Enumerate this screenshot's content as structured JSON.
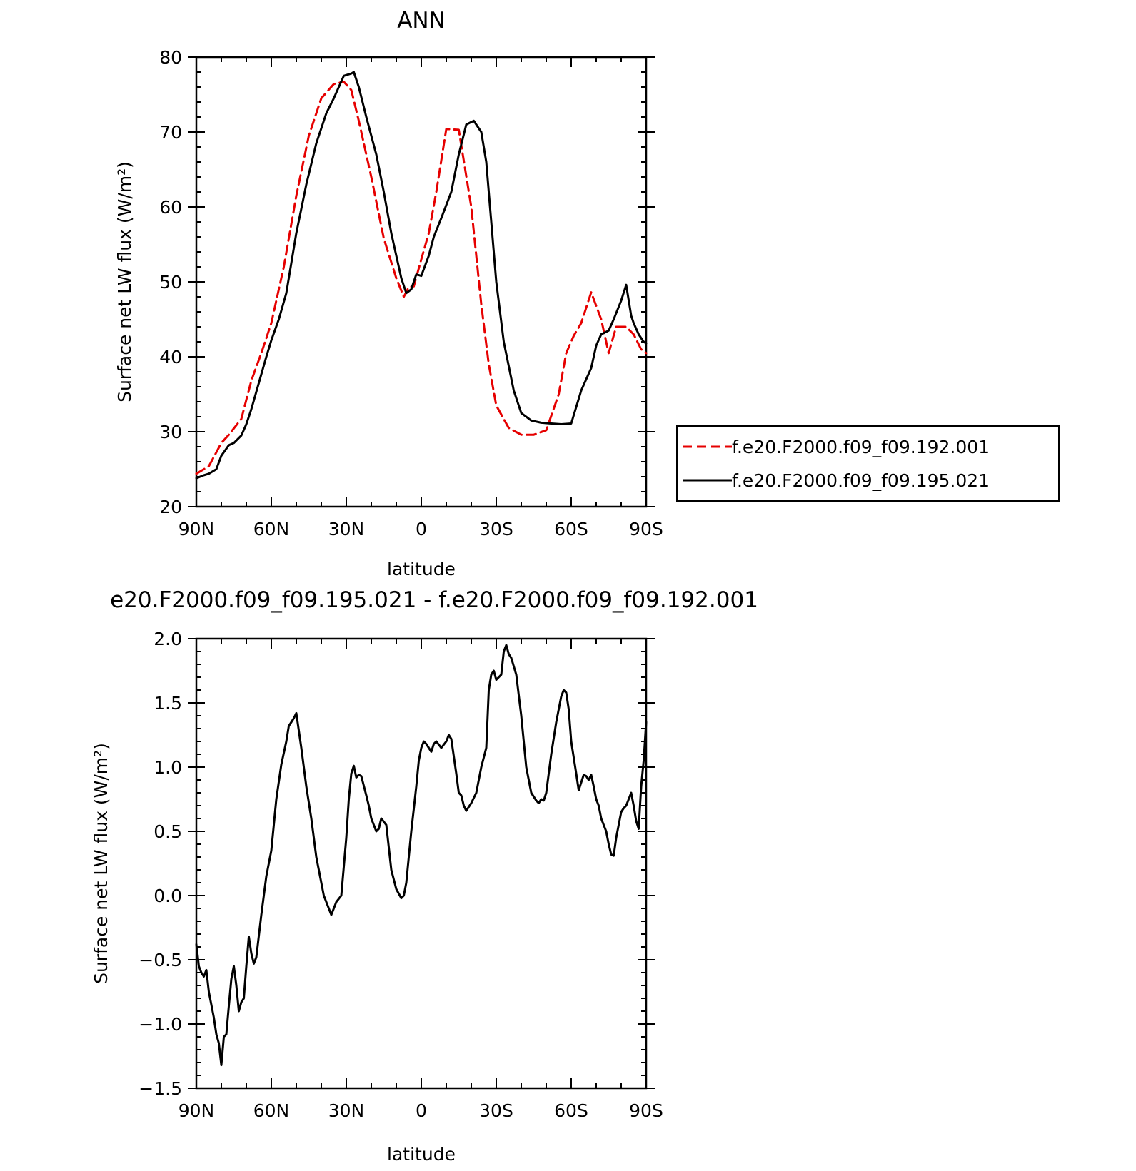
{
  "chart_data": [
    {
      "type": "line",
      "title": "ANN",
      "xlabel": "latitude",
      "ylabel": "Surface net LW flux (W/m²)",
      "xlim": [
        90,
        -90
      ],
      "ylim": [
        20,
        80
      ],
      "x_ticks": [
        {
          "value": 90,
          "label": "90N"
        },
        {
          "value": 60,
          "label": "60N"
        },
        {
          "value": 30,
          "label": "30N"
        },
        {
          "value": 0,
          "label": "0"
        },
        {
          "value": -30,
          "label": "30S"
        },
        {
          "value": -60,
          "label": "60S"
        },
        {
          "value": -90,
          "label": "90S"
        }
      ],
      "y_ticks": [
        20,
        30,
        40,
        50,
        60,
        70,
        80
      ],
      "legend": "right",
      "series": [
        {
          "name": "f.e20.F2000.f09_f09.192.001",
          "color": "#e60000",
          "dash": "dashed",
          "x": [
            90,
            85,
            80,
            77,
            72,
            68,
            64,
            60,
            55,
            50,
            45,
            40,
            35,
            31,
            28,
            25,
            20,
            15,
            10,
            7,
            5,
            3,
            0,
            -3,
            -6,
            -10,
            -15,
            -20,
            -24,
            -27,
            -30,
            -35,
            -40,
            -45,
            -50,
            -55,
            -58,
            -61,
            -64,
            -68,
            -72,
            -75,
            -78,
            -82,
            -85,
            -88,
            -90
          ],
          "values": [
            24.4,
            25.4,
            28.5,
            29.6,
            31.7,
            36.8,
            40.5,
            44.5,
            52.0,
            61.5,
            69.5,
            74.5,
            76.4,
            76.7,
            75.6,
            71.5,
            64.0,
            55.8,
            50.5,
            48.0,
            49.3,
            49.4,
            53.0,
            56.5,
            62.0,
            70.4,
            70.3,
            60.0,
            47.0,
            39.0,
            33.5,
            30.5,
            29.6,
            29.6,
            30.2,
            35.0,
            40.5,
            42.8,
            44.5,
            48.6,
            45.0,
            40.5,
            44.0,
            44.0,
            43.0,
            41.0,
            40.5
          ]
        },
        {
          "name": "f.e20.F2000.f09_f09.195.021",
          "color": "#000000",
          "dash": "solid",
          "x": [
            90,
            87,
            85,
            82,
            80,
            77,
            75,
            72,
            70,
            68,
            65,
            62,
            60,
            57,
            54,
            50,
            46,
            42,
            38,
            35,
            31,
            28,
            27,
            25,
            22,
            18,
            15,
            12,
            8,
            6,
            4,
            2,
            0,
            -3,
            -5,
            -8,
            -12,
            -15,
            -18,
            -21,
            -24,
            -26,
            -28,
            -30,
            -33,
            -37,
            -40,
            -44,
            -48,
            -52,
            -56,
            -60,
            -64,
            -66,
            -68,
            -70,
            -72,
            -75,
            -77,
            -80,
            -82,
            -84,
            -85,
            -87,
            -89,
            -90
          ],
          "values": [
            23.8,
            24.2,
            24.4,
            25.0,
            26.8,
            28.2,
            28.5,
            29.5,
            31.0,
            33.0,
            36.5,
            40.0,
            42.2,
            45.0,
            48.5,
            56.5,
            63.0,
            68.5,
            72.5,
            74.5,
            77.5,
            77.8,
            78.0,
            76.0,
            72.0,
            67.0,
            62.0,
            56.5,
            50.5,
            48.5,
            49.0,
            51.0,
            50.8,
            53.5,
            56.0,
            58.5,
            62.0,
            67.0,
            71.0,
            71.5,
            70.0,
            66.0,
            58.0,
            50.0,
            42.0,
            35.5,
            32.5,
            31.5,
            31.2,
            31.1,
            31.0,
            31.1,
            35.5,
            37.0,
            38.5,
            41.5,
            43.0,
            43.5,
            45.0,
            47.5,
            49.6,
            45.5,
            44.5,
            43.0,
            42.0,
            41.8
          ]
        }
      ]
    },
    {
      "type": "line",
      "title": "e20.F2000.f09_f09.195.021 - f.e20.F2000.f09_f09.192.001",
      "xlabel": "latitude",
      "ylabel": "Surface net LW flux (W/m²)",
      "xlim": [
        90,
        -90
      ],
      "ylim": [
        -1.5,
        2.0
      ],
      "x_ticks": [
        {
          "value": 90,
          "label": "90N"
        },
        {
          "value": 60,
          "label": "60N"
        },
        {
          "value": 30,
          "label": "30N"
        },
        {
          "value": 0,
          "label": "0"
        },
        {
          "value": -30,
          "label": "30S"
        },
        {
          "value": -60,
          "label": "60S"
        },
        {
          "value": -90,
          "label": "90S"
        }
      ],
      "y_ticks": [
        {
          "value": -1.5,
          "label": "−1.5"
        },
        {
          "value": -1.0,
          "label": "−1.0"
        },
        {
          "value": -0.5,
          "label": "−0.5"
        },
        {
          "value": 0.0,
          "label": "0.0"
        },
        {
          "value": 0.5,
          "label": "0.5"
        },
        {
          "value": 1.0,
          "label": "1.0"
        },
        {
          "value": 1.5,
          "label": "1.5"
        },
        {
          "value": 2.0,
          "label": "2.0"
        }
      ],
      "series": [
        {
          "color": "#000000",
          "dash": "solid",
          "x": [
            90,
            89,
            88,
            87,
            86,
            85,
            84,
            83,
            82,
            81,
            80,
            79,
            78,
            77,
            76,
            75,
            74,
            73,
            72,
            71,
            70,
            69,
            68,
            67,
            66,
            64,
            62,
            60,
            58,
            56,
            54,
            53,
            52,
            51,
            50,
            48,
            46,
            44,
            42,
            40,
            39,
            38,
            37,
            36,
            34,
            32,
            30,
            29,
            28,
            27,
            26,
            25,
            24,
            22,
            21,
            20,
            19,
            18,
            17,
            16,
            14,
            12,
            10,
            8,
            7,
            6,
            4,
            2,
            1,
            0,
            -1,
            -2,
            -3,
            -4,
            -5,
            -6,
            -8,
            -10,
            -11,
            -12,
            -14,
            -15,
            -16,
            -17,
            -18,
            -20,
            -22,
            -24,
            -26,
            -27,
            -28,
            -29,
            -30,
            -31,
            -32,
            -33,
            -34,
            -35,
            -36,
            -38,
            -40,
            -42,
            -44,
            -46,
            -47,
            -48,
            -49,
            -50,
            -52,
            -54,
            -56,
            -57,
            -58,
            -59,
            -60,
            -62,
            -63,
            -64,
            -65,
            -66,
            -67,
            -68,
            -69,
            -70,
            -71,
            -72,
            -73,
            -74,
            -75,
            -76,
            -77,
            -78,
            -79,
            -80,
            -81,
            -82,
            -83,
            -84,
            -85,
            -86,
            -87,
            -88,
            -89,
            -90
          ],
          "values": [
            -0.38,
            -0.55,
            -0.6,
            -0.63,
            -0.58,
            -0.75,
            -0.85,
            -0.95,
            -1.08,
            -1.15,
            -1.32,
            -1.1,
            -1.08,
            -0.86,
            -0.65,
            -0.55,
            -0.7,
            -0.9,
            -0.83,
            -0.8,
            -0.55,
            -0.32,
            -0.45,
            -0.53,
            -0.48,
            -0.15,
            0.15,
            0.35,
            0.75,
            1.02,
            1.2,
            1.32,
            1.35,
            1.38,
            1.42,
            1.15,
            0.85,
            0.6,
            0.3,
            0.1,
            0.0,
            -0.05,
            -0.1,
            -0.15,
            -0.05,
            0.0,
            0.45,
            0.75,
            0.95,
            1.01,
            0.92,
            0.94,
            0.93,
            0.78,
            0.7,
            0.6,
            0.55,
            0.5,
            0.52,
            0.6,
            0.55,
            0.2,
            0.05,
            -0.02,
            0.0,
            0.1,
            0.5,
            0.85,
            1.05,
            1.15,
            1.2,
            1.18,
            1.15,
            1.12,
            1.18,
            1.2,
            1.15,
            1.2,
            1.25,
            1.22,
            0.95,
            0.8,
            0.78,
            0.7,
            0.66,
            0.72,
            0.8,
            1.0,
            1.15,
            1.6,
            1.72,
            1.75,
            1.68,
            1.7,
            1.72,
            1.9,
            1.95,
            1.88,
            1.85,
            1.72,
            1.4,
            1.0,
            0.8,
            0.74,
            0.72,
            0.75,
            0.74,
            0.8,
            1.1,
            1.35,
            1.55,
            1.6,
            1.58,
            1.45,
            1.2,
            0.95,
            0.82,
            0.88,
            0.94,
            0.93,
            0.9,
            0.94,
            0.85,
            0.75,
            0.7,
            0.6,
            0.55,
            0.5,
            0.4,
            0.32,
            0.31,
            0.45,
            0.55,
            0.65,
            0.68,
            0.7,
            0.75,
            0.8,
            0.7,
            0.58,
            0.52,
            0.85,
            1.05,
            1.35
          ]
        }
      ]
    }
  ]
}
